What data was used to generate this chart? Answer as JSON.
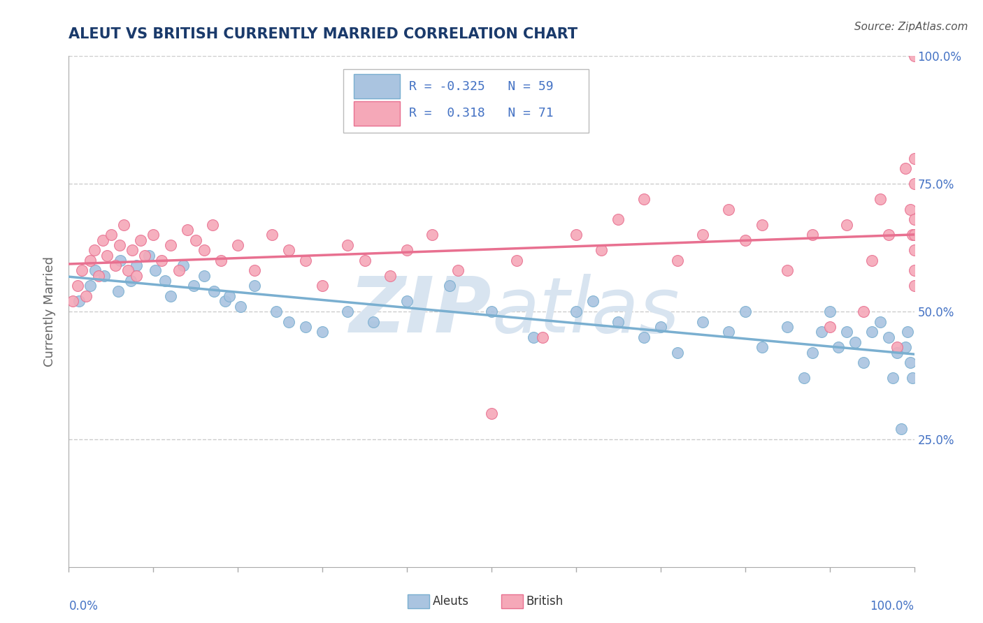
{
  "title": "ALEUT VS BRITISH CURRENTLY MARRIED CORRELATION CHART",
  "source": "Source: ZipAtlas.com",
  "ylabel": "Currently Married",
  "aleut_R": -0.325,
  "aleut_N": 59,
  "british_R": 0.318,
  "british_N": 71,
  "aleut_color": "#aac4e0",
  "british_color": "#f5a8b8",
  "aleut_edge_color": "#7aafd0",
  "british_edge_color": "#e87090",
  "aleut_line_color": "#7aafd0",
  "british_line_color": "#e87090",
  "title_color": "#1a3a6b",
  "axis_label_color": "#4472c4",
  "watermark_color": "#d8e4f0",
  "background_color": "#ffffff",
  "grid_color": "#cccccc",
  "aleut_x": [
    1.2,
    2.5,
    3.1,
    4.2,
    5.8,
    6.1,
    7.3,
    8.0,
    9.5,
    10.2,
    11.4,
    12.0,
    13.5,
    14.8,
    16.0,
    17.2,
    18.5,
    19.0,
    20.3,
    22.0,
    24.5,
    26.0,
    28.0,
    30.0,
    33.0,
    36.0,
    40.0,
    45.0,
    50.0,
    55.0,
    60.0,
    62.0,
    65.0,
    68.0,
    70.0,
    72.0,
    75.0,
    78.0,
    80.0,
    82.0,
    85.0,
    87.0,
    88.0,
    89.0,
    90.0,
    91.0,
    92.0,
    93.0,
    94.0,
    95.0,
    96.0,
    97.0,
    97.5,
    98.0,
    98.5,
    99.0,
    99.2,
    99.5,
    99.8
  ],
  "aleut_y": [
    52.0,
    55.0,
    58.0,
    57.0,
    54.0,
    60.0,
    56.0,
    59.0,
    61.0,
    58.0,
    56.0,
    53.0,
    59.0,
    55.0,
    57.0,
    54.0,
    52.0,
    53.0,
    51.0,
    55.0,
    50.0,
    48.0,
    47.0,
    46.0,
    50.0,
    48.0,
    52.0,
    55.0,
    50.0,
    45.0,
    50.0,
    52.0,
    48.0,
    45.0,
    47.0,
    42.0,
    48.0,
    46.0,
    50.0,
    43.0,
    47.0,
    37.0,
    42.0,
    46.0,
    50.0,
    43.0,
    46.0,
    44.0,
    40.0,
    46.0,
    48.0,
    45.0,
    37.0,
    42.0,
    27.0,
    43.0,
    46.0,
    40.0,
    37.0
  ],
  "british_x": [
    0.5,
    1.0,
    1.5,
    2.0,
    2.5,
    3.0,
    3.5,
    4.0,
    4.5,
    5.0,
    5.5,
    6.0,
    6.5,
    7.0,
    7.5,
    8.0,
    8.5,
    9.0,
    10.0,
    11.0,
    12.0,
    13.0,
    14.0,
    15.0,
    16.0,
    17.0,
    18.0,
    20.0,
    22.0,
    24.0,
    26.0,
    28.0,
    30.0,
    33.0,
    35.0,
    38.0,
    40.0,
    43.0,
    46.0,
    50.0,
    53.0,
    56.0,
    60.0,
    63.0,
    65.0,
    68.0,
    72.0,
    75.0,
    78.0,
    80.0,
    82.0,
    85.0,
    88.0,
    90.0,
    92.0,
    94.0,
    95.0,
    96.0,
    97.0,
    98.0,
    99.0,
    99.5,
    99.8,
    100.0,
    100.0,
    100.0,
    100.0,
    100.0,
    100.0,
    100.0,
    100.0
  ],
  "british_y": [
    52.0,
    55.0,
    58.0,
    53.0,
    60.0,
    62.0,
    57.0,
    64.0,
    61.0,
    65.0,
    59.0,
    63.0,
    67.0,
    58.0,
    62.0,
    57.0,
    64.0,
    61.0,
    65.0,
    60.0,
    63.0,
    58.0,
    66.0,
    64.0,
    62.0,
    67.0,
    60.0,
    63.0,
    58.0,
    65.0,
    62.0,
    60.0,
    55.0,
    63.0,
    60.0,
    57.0,
    62.0,
    65.0,
    58.0,
    30.0,
    60.0,
    45.0,
    65.0,
    62.0,
    68.0,
    72.0,
    60.0,
    65.0,
    70.0,
    64.0,
    67.0,
    58.0,
    65.0,
    47.0,
    67.0,
    50.0,
    60.0,
    72.0,
    65.0,
    43.0,
    78.0,
    70.0,
    65.0,
    100.0,
    80.0,
    75.0,
    68.0,
    65.0,
    62.0,
    58.0,
    55.0
  ]
}
